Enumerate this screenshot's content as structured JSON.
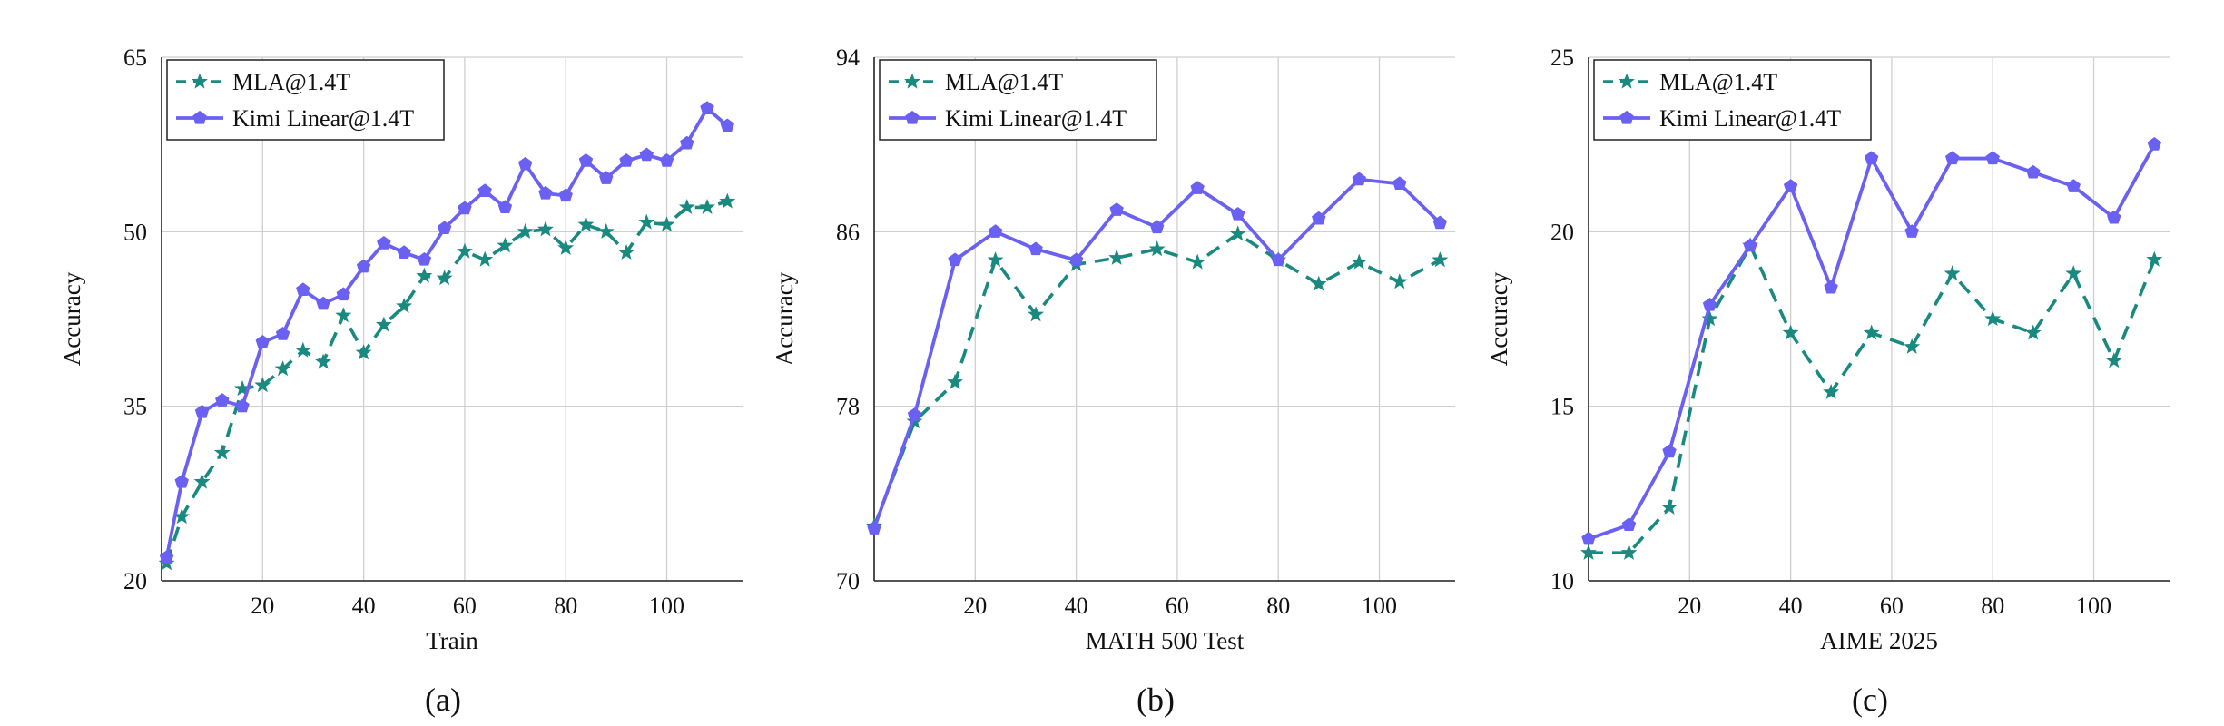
{
  "colors": {
    "mla": "#1a8a80",
    "kimi": "#6a60f2",
    "grid": "#cfcfcf",
    "axis": "#222222"
  },
  "chart_data": [
    {
      "type": "line",
      "panel_label": "(a)",
      "xlabel": "Train",
      "ylabel": "Accuracy",
      "xlim": [
        0,
        115
      ],
      "ylim": [
        20,
        65
      ],
      "xticks": [
        20,
        40,
        60,
        80,
        100
      ],
      "yticks": [
        20,
        35,
        50,
        65
      ],
      "grid": true,
      "legend_position": "top-left",
      "series": [
        {
          "name": "MLA@1.4T",
          "style": "dashed",
          "marker": "star",
          "x": [
            1,
            4,
            8,
            12,
            16,
            20,
            24,
            28,
            32,
            36,
            40,
            44,
            48,
            52,
            56,
            60,
            64,
            68,
            72,
            76,
            80,
            84,
            88,
            92,
            96,
            100,
            104,
            108,
            112
          ],
          "y": [
            21.5,
            25.5,
            28.5,
            31.0,
            36.5,
            36.8,
            38.2,
            39.8,
            38.8,
            42.8,
            39.6,
            42.0,
            43.6,
            46.2,
            46.0,
            48.3,
            47.6,
            48.8,
            50.0,
            50.2,
            48.6,
            50.6,
            50.0,
            48.2,
            50.8,
            50.6,
            52.1,
            52.1,
            52.6
          ]
        },
        {
          "name": "Kimi Linear@1.4T",
          "style": "solid",
          "marker": "pentagon",
          "x": [
            1,
            4,
            8,
            12,
            16,
            20,
            24,
            28,
            32,
            36,
            40,
            44,
            48,
            52,
            56,
            60,
            64,
            68,
            72,
            76,
            80,
            84,
            88,
            92,
            96,
            100,
            104,
            108,
            112
          ],
          "y": [
            22.0,
            28.5,
            34.5,
            35.5,
            35.0,
            40.5,
            41.2,
            45.0,
            43.8,
            44.6,
            47.0,
            49.0,
            48.2,
            47.6,
            50.3,
            52.0,
            53.5,
            52.1,
            55.8,
            53.3,
            53.1,
            56.1,
            54.6,
            56.1,
            56.6,
            56.1,
            57.6,
            60.6,
            59.1
          ]
        }
      ]
    },
    {
      "type": "line",
      "panel_label": "(b)",
      "xlabel": "MATH 500 Test",
      "ylabel": "Accuracy",
      "xlim": [
        0,
        115
      ],
      "ylim": [
        70,
        94
      ],
      "xticks": [
        20,
        40,
        60,
        80,
        100
      ],
      "yticks": [
        70,
        78,
        86,
        94
      ],
      "grid": true,
      "legend_position": "top-left",
      "series": [
        {
          "name": "MLA@1.4T",
          "style": "dashed",
          "marker": "star",
          "x": [
            0,
            8,
            16,
            24,
            32,
            40,
            48,
            56,
            64,
            72,
            80,
            88,
            96,
            104,
            112
          ],
          "y": [
            72.5,
            77.3,
            79.1,
            84.7,
            82.2,
            84.5,
            84.8,
            85.2,
            84.6,
            85.9,
            84.7,
            83.6,
            84.6,
            83.7,
            84.7
          ],
          "name_visible": true
        },
        {
          "name": "Kimi Linear@1.4T",
          "style": "solid",
          "marker": "pentagon",
          "x": [
            0,
            8,
            16,
            24,
            32,
            40,
            48,
            56,
            64,
            72,
            80,
            88,
            96,
            104,
            112
          ],
          "y": [
            72.4,
            77.6,
            84.7,
            86.0,
            85.2,
            84.7,
            87.0,
            86.2,
            88.0,
            86.8,
            84.7,
            86.6,
            88.4,
            88.2,
            86.4
          ]
        }
      ]
    },
    {
      "type": "line",
      "panel_label": "(c)",
      "xlabel": "AIME 2025",
      "ylabel": "Accuracy",
      "xlim": [
        0,
        115
      ],
      "ylim": [
        10,
        25
      ],
      "xticks": [
        20,
        40,
        60,
        80,
        100
      ],
      "yticks": [
        10,
        15,
        20,
        25
      ],
      "grid": true,
      "legend_position": "top-left",
      "series": [
        {
          "name": "MLA@1.4T",
          "style": "dashed",
          "marker": "star",
          "x": [
            0,
            8,
            16,
            24,
            32,
            40,
            48,
            56,
            64,
            72,
            80,
            88,
            96,
            104,
            112
          ],
          "y": [
            10.8,
            10.8,
            12.1,
            17.5,
            19.6,
            17.1,
            15.4,
            17.1,
            16.7,
            18.8,
            17.5,
            17.1,
            18.8,
            16.3,
            19.2
          ]
        },
        {
          "name": "Kimi Linear@1.4T",
          "style": "solid",
          "marker": "pentagon",
          "x": [
            0,
            8,
            16,
            24,
            32,
            40,
            48,
            56,
            64,
            72,
            80,
            88,
            96,
            104,
            112
          ],
          "y": [
            11.2,
            11.6,
            13.7,
            17.9,
            19.6,
            21.3,
            18.4,
            22.1,
            20.0,
            22.1,
            22.1,
            21.7,
            21.3,
            20.4,
            22.5
          ]
        }
      ]
    }
  ]
}
